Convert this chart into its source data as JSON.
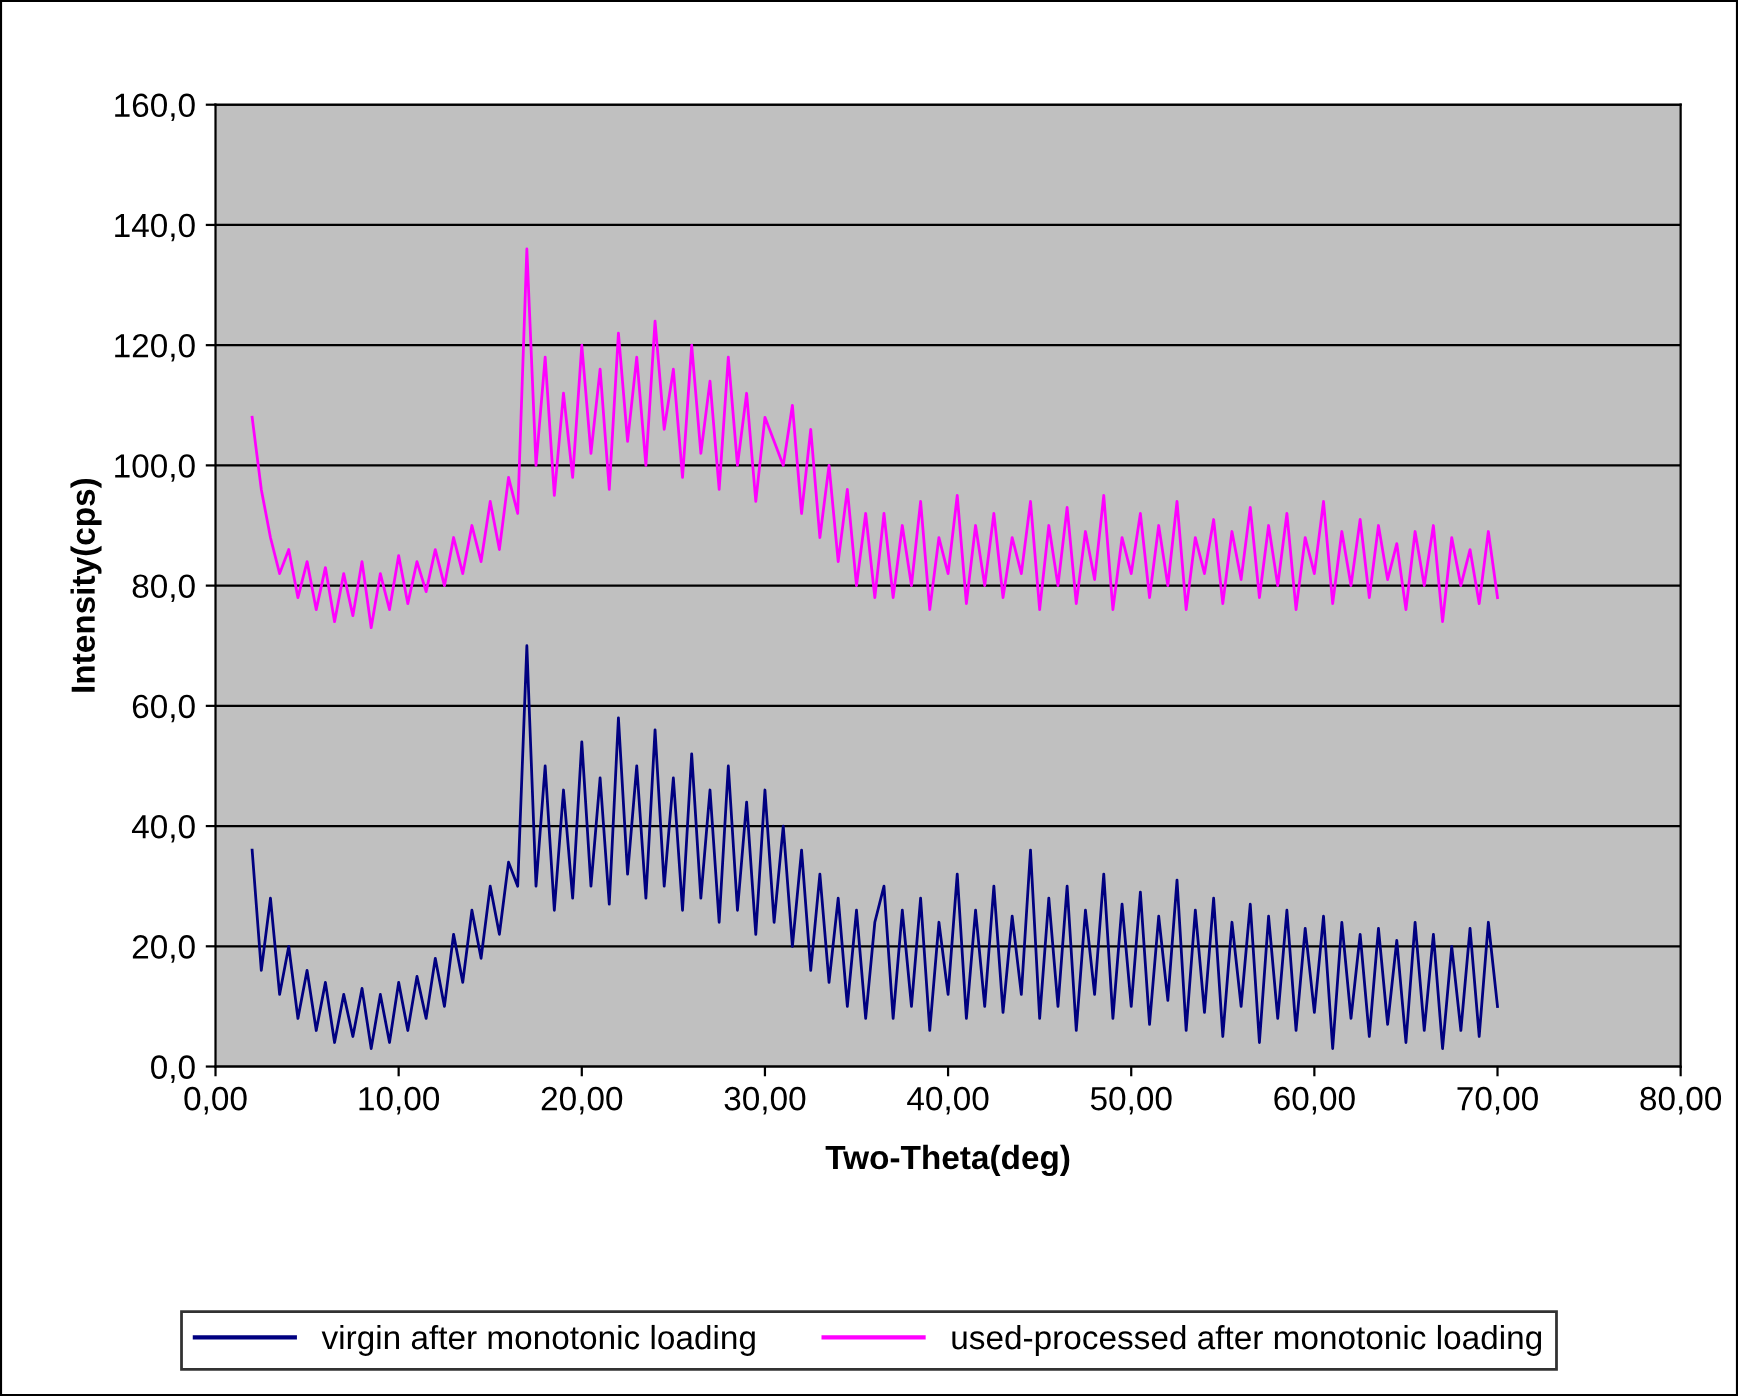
{
  "chart_data": {
    "type": "line",
    "xlabel": "Two-Theta(deg)",
    "ylabel": "Intensity(cps)",
    "x": [
      2,
      2.5,
      3,
      3.5,
      4,
      4.5,
      5,
      5.5,
      6,
      6.5,
      7,
      7.5,
      8,
      8.5,
      9,
      9.5,
      10,
      10.5,
      11,
      11.5,
      12,
      12.5,
      13,
      13.5,
      14,
      14.5,
      15,
      15.5,
      16,
      16.5,
      17,
      17.5,
      18,
      18.5,
      19,
      19.5,
      20,
      20.5,
      21,
      21.5,
      22,
      22.5,
      23,
      23.5,
      24,
      24.5,
      25,
      25.5,
      26,
      26.5,
      27,
      27.5,
      28,
      28.5,
      29,
      29.5,
      30,
      30.5,
      31,
      31.5,
      32,
      32.5,
      33,
      33.5,
      34,
      34.5,
      35,
      35.5,
      36,
      36.5,
      37,
      37.5,
      38,
      38.5,
      39,
      39.5,
      40,
      40.5,
      41,
      41.5,
      42,
      42.5,
      43,
      43.5,
      44,
      44.5,
      45,
      45.5,
      46,
      46.5,
      47,
      47.5,
      48,
      48.5,
      49,
      49.5,
      50,
      50.5,
      51,
      51.5,
      52,
      52.5,
      53,
      53.5,
      54,
      54.5,
      55,
      55.5,
      56,
      56.5,
      57,
      57.5,
      58,
      58.5,
      59,
      59.5,
      60,
      60.5,
      61,
      61.5,
      62,
      62.5,
      63,
      63.5,
      64,
      64.5,
      65,
      65.5,
      66,
      66.5,
      67,
      67.5,
      68,
      68.5,
      69,
      69.5,
      70
    ],
    "series": [
      {
        "name": "virgin after monotonic loading",
        "color": "#000080",
        "values": [
          36,
          16,
          28,
          12,
          20,
          8,
          16,
          6,
          14,
          4,
          12,
          5,
          13,
          3,
          12,
          4,
          14,
          6,
          15,
          8,
          18,
          10,
          22,
          14,
          26,
          18,
          30,
          22,
          34,
          30,
          70,
          30,
          50,
          26,
          46,
          28,
          54,
          30,
          48,
          27,
          58,
          32,
          50,
          28,
          56,
          30,
          48,
          26,
          52,
          28,
          46,
          24,
          50,
          26,
          44,
          22,
          46,
          24,
          40,
          20,
          36,
          16,
          32,
          14,
          28,
          10,
          26,
          8,
          24,
          30,
          8,
          26,
          10,
          28,
          6,
          24,
          12,
          32,
          8,
          26,
          10,
          30,
          9,
          25,
          12,
          36,
          8,
          28,
          10,
          30,
          6,
          26,
          12,
          32,
          8,
          27,
          10,
          29,
          7,
          25,
          11,
          31,
          6,
          26,
          9,
          28,
          5,
          24,
          10,
          27,
          4,
          25,
          8,
          26,
          6,
          23,
          9,
          25,
          3,
          24,
          8,
          22,
          5,
          23,
          7,
          21,
          4,
          24,
          6,
          22,
          3,
          20,
          6,
          23,
          5,
          24,
          10
        ]
      },
      {
        "name": "used-processed after monotonic loading",
        "color": "#ff00ff",
        "values": [
          108,
          96,
          88,
          82,
          86,
          78,
          84,
          76,
          83,
          74,
          82,
          75,
          84,
          73,
          82,
          76,
          85,
          77,
          84,
          79,
          86,
          80,
          88,
          82,
          90,
          84,
          94,
          86,
          98,
          92,
          136,
          100,
          118,
          95,
          112,
          98,
          120,
          102,
          116,
          96,
          122,
          104,
          118,
          100,
          124,
          106,
          116,
          98,
          120,
          102,
          114,
          96,
          118,
          100,
          112,
          94,
          108,
          104,
          100,
          110,
          92,
          106,
          88,
          100,
          84,
          96,
          80,
          92,
          78,
          92,
          78,
          90,
          80,
          94,
          76,
          88,
          82,
          95,
          77,
          90,
          80,
          92,
          78,
          88,
          82,
          94,
          76,
          90,
          80,
          93,
          77,
          89,
          81,
          95,
          76,
          88,
          82,
          92,
          78,
          90,
          80,
          94,
          76,
          88,
          82,
          91,
          77,
          89,
          81,
          93,
          78,
          90,
          80,
          92,
          76,
          88,
          82,
          94,
          77,
          89,
          80,
          91,
          78,
          90,
          81,
          87,
          76,
          89,
          80,
          90,
          74,
          88,
          80,
          86,
          77,
          89,
          78
        ]
      }
    ],
    "xlim": [
      0,
      80
    ],
    "xticks": [
      {
        "value": 0,
        "label": "0,00"
      },
      {
        "value": 10,
        "label": "10,00"
      },
      {
        "value": 20,
        "label": "20,00"
      },
      {
        "value": 30,
        "label": "30,00"
      },
      {
        "value": 40,
        "label": "40,00"
      },
      {
        "value": 50,
        "label": "50,00"
      },
      {
        "value": 60,
        "label": "60,00"
      },
      {
        "value": 70,
        "label": "70,00"
      },
      {
        "value": 80,
        "label": "80,00"
      }
    ],
    "ylim": [
      0,
      160
    ],
    "yticks": [
      {
        "value": 0,
        "label": "0,0"
      },
      {
        "value": 20,
        "label": "20,0"
      },
      {
        "value": 40,
        "label": "40,0"
      },
      {
        "value": 60,
        "label": "60,0"
      },
      {
        "value": 80,
        "label": "80,0"
      },
      {
        "value": 100,
        "label": "100,0"
      },
      {
        "value": 120,
        "label": "120,0"
      },
      {
        "value": 140,
        "label": "140,0"
      },
      {
        "value": 160,
        "label": "160,0"
      }
    ],
    "grid": "y",
    "legend": "bottom",
    "marker": "none",
    "line_style": "solid"
  }
}
